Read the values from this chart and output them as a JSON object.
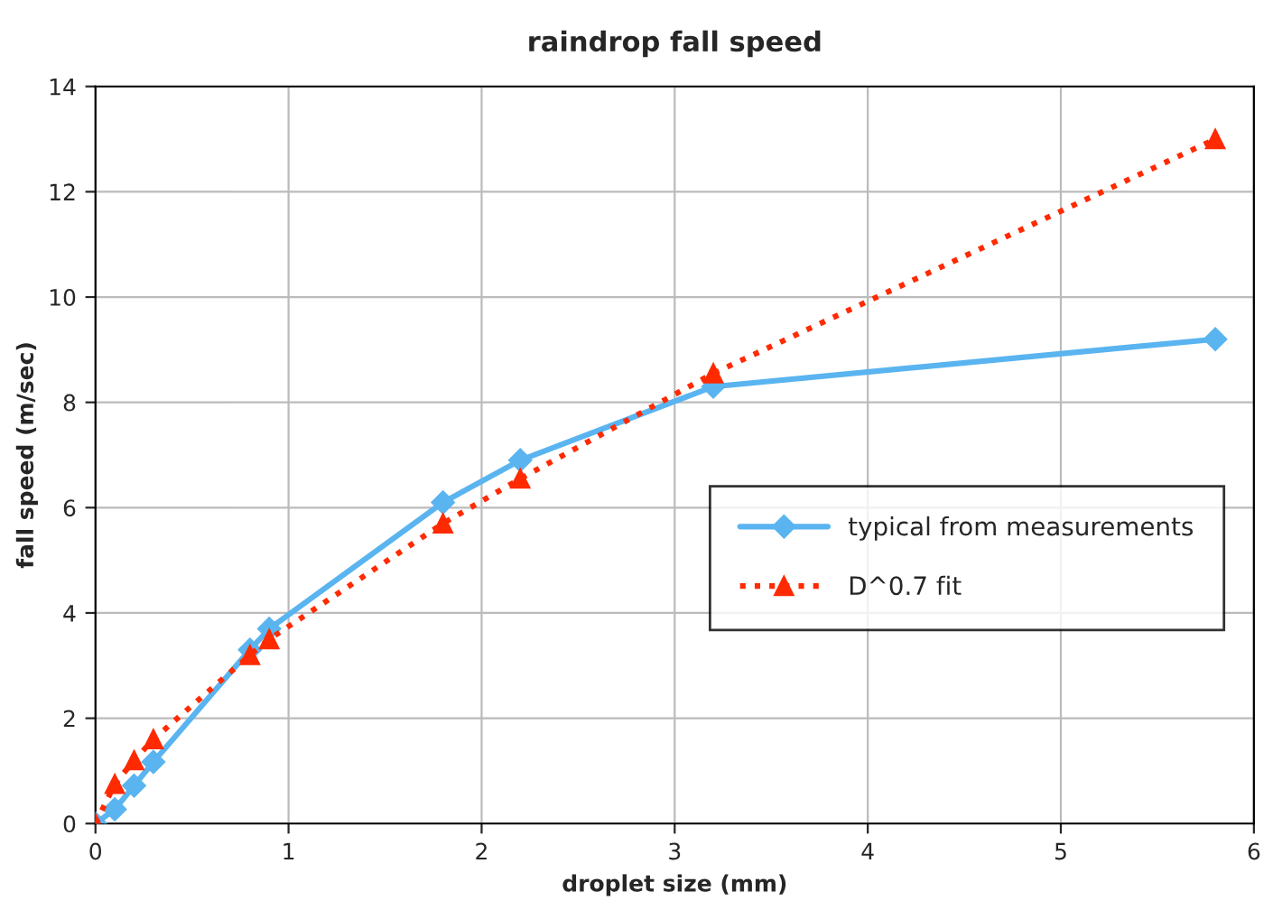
{
  "chart_data": {
    "type": "line",
    "title": "raindrop fall speed",
    "xlabel": "droplet size (mm)",
    "ylabel": "fall speed (m/sec)",
    "xlim": [
      0,
      6
    ],
    "xticks": [
      0,
      1,
      2,
      3,
      4,
      5,
      6
    ],
    "ylim": [
      0,
      14
    ],
    "yticks": [
      0,
      2,
      4,
      6,
      8,
      10,
      12,
      14
    ],
    "grid": true,
    "legend": "right",
    "series": [
      {
        "name": "typical from measurements",
        "color": "#5ab4f0",
        "marker": "diamond",
        "line_style": "solid",
        "x": [
          0,
          0.1,
          0.2,
          0.3,
          0.8,
          0.9,
          1.8,
          2.2,
          3.2,
          5.8
        ],
        "values": [
          0,
          0.27,
          0.72,
          1.17,
          3.3,
          3.7,
          6.1,
          6.9,
          8.3,
          9.2
        ]
      },
      {
        "name": "D^0.7 fit",
        "color": "#ff2a00",
        "marker": "triangle",
        "line_style": "dotted",
        "x": [
          0,
          0.1,
          0.2,
          0.3,
          0.8,
          0.9,
          1.8,
          2.2,
          3.2,
          5.8
        ],
        "values": [
          0,
          0.75,
          1.2,
          1.6,
          3.2,
          3.5,
          5.7,
          6.55,
          8.55,
          13.0
        ]
      }
    ]
  }
}
